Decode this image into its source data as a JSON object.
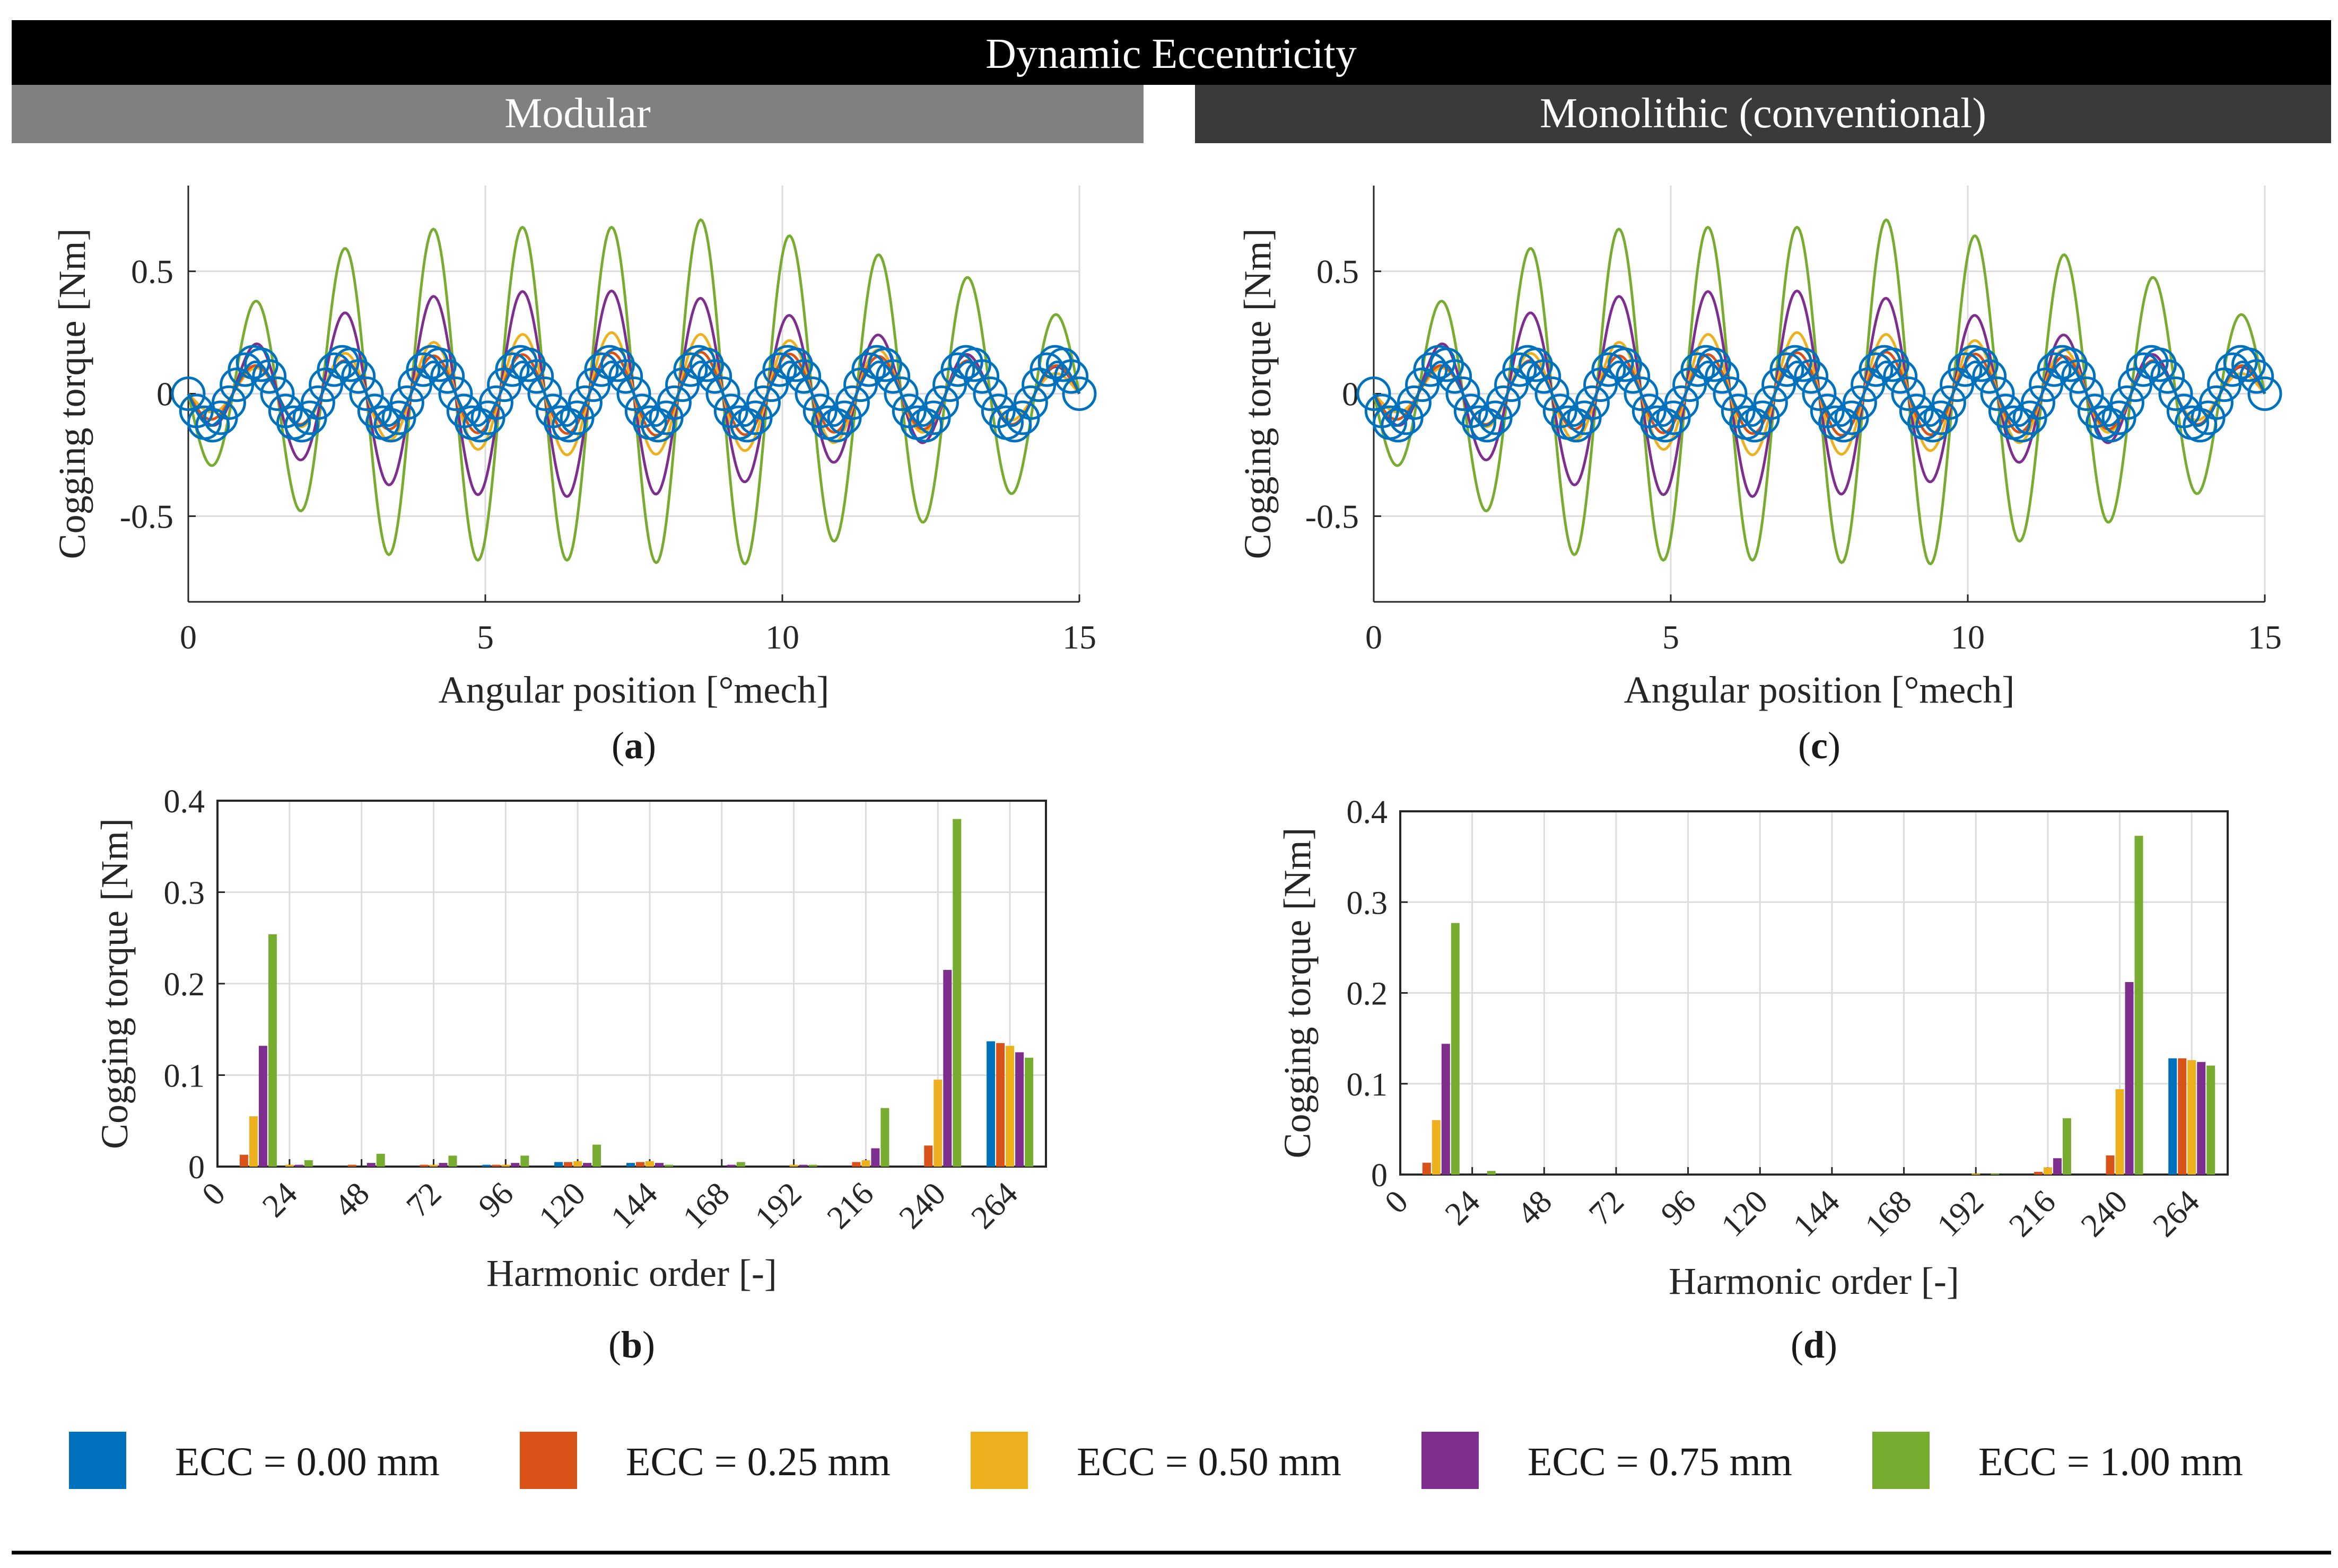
{
  "figure": {
    "header_title": "Dynamic Eccentricity",
    "left_header": "Modular",
    "right_header": "Monolithic (conventional)"
  },
  "colors": {
    "ecc000": "#0072BD",
    "ecc025": "#D95319",
    "ecc050": "#EDB120",
    "ecc075": "#7E2F8E",
    "ecc100": "#77AC30",
    "header_dark": "#000000",
    "header_left": "#808080",
    "header_right": "#3a3a3a"
  },
  "legend": [
    {
      "label": "ECC = 0.00 mm",
      "color_key": "ecc000"
    },
    {
      "label": "ECC = 0.25 mm",
      "color_key": "ecc025"
    },
    {
      "label": "ECC = 0.50 mm",
      "color_key": "ecc050"
    },
    {
      "label": "ECC = 0.75 mm",
      "color_key": "ecc075"
    },
    {
      "label": "ECC = 1.00 mm",
      "color_key": "ecc100"
    }
  ],
  "chart_data": [
    {
      "id": "a",
      "panel_label": "a",
      "type": "line",
      "xlabel": "Angular position [°mech]",
      "ylabel": "Cogging torque [Nm]",
      "xlim": [
        0,
        15
      ],
      "ylim": [
        -0.85,
        0.85
      ],
      "xticks": [
        0,
        5,
        10,
        15
      ],
      "yticks": [
        -0.5,
        0,
        0.5
      ],
      "ytick_labels": [
        "-0.5",
        "0",
        "0.5"
      ],
      "grid": true,
      "period_deg": 1.5,
      "series": [
        {
          "name": "ECC = 0.00 mm",
          "marker": "circle",
          "fundamental_amplitude_nm": 0.13,
          "envelope": [
            0.13,
            0.13,
            0.13,
            0.13,
            0.13,
            0.13,
            0.13,
            0.13,
            0.13,
            0.13,
            0.13
          ]
        },
        {
          "name": "ECC = 0.25 mm",
          "fundamental_amplitude_nm": 0.15,
          "envelope": [
            0.1,
            0.12,
            0.14,
            0.16,
            0.16,
            0.17,
            0.17,
            0.16,
            0.15,
            0.13,
            0.11
          ]
        },
        {
          "name": "ECC = 0.50 mm",
          "fundamental_amplitude_nm": 0.22,
          "envelope": [
            0.06,
            0.12,
            0.18,
            0.22,
            0.25,
            0.25,
            0.24,
            0.21,
            0.17,
            0.12,
            0.07
          ]
        },
        {
          "name": "ECC = 0.75 mm",
          "fundamental_amplitude_nm": 0.4,
          "envelope": [
            0.09,
            0.24,
            0.36,
            0.41,
            0.42,
            0.42,
            0.38,
            0.3,
            0.22,
            0.14,
            0.1
          ]
        },
        {
          "name": "ECC = 1.00 mm",
          "fundamental_amplitude_nm": 0.7,
          "envelope": [
            0.25,
            0.42,
            0.65,
            0.68,
            0.68,
            0.68,
            0.72,
            0.62,
            0.55,
            0.45,
            0.28
          ]
        }
      ]
    },
    {
      "id": "b",
      "panel_label": "b",
      "type": "bar",
      "xlabel": "Harmonic order [-]",
      "ylabel": "Cogging torque [Nm]",
      "ylim": [
        0,
        0.4
      ],
      "yticks": [
        0,
        0.1,
        0.2,
        0.3,
        0.4
      ],
      "categories": [
        "0",
        "24",
        "48",
        "72",
        "96",
        "120",
        "144",
        "168",
        "192",
        "216",
        "240",
        "264"
      ],
      "bar_positions": [
        12,
        24,
        48,
        72,
        96,
        120,
        144,
        168,
        192,
        216,
        240,
        264
      ],
      "tick_positions": [
        0,
        24,
        48,
        72,
        96,
        120,
        144,
        168,
        192,
        216,
        240,
        264
      ],
      "x_range": [
        0,
        276
      ],
      "grid": true,
      "series": [
        {
          "name": "ECC = 0.00 mm",
          "values": [
            0,
            0,
            0,
            0,
            0.002,
            0.005,
            0.004,
            0,
            0,
            0,
            0,
            0.137
          ]
        },
        {
          "name": "ECC = 0.25 mm",
          "values": [
            0.013,
            0,
            0.002,
            0.002,
            0.002,
            0.005,
            0.005,
            0,
            0,
            0.005,
            0.023,
            0.135
          ]
        },
        {
          "name": "ECC = 0.50 mm",
          "values": [
            0.055,
            0.002,
            0,
            0.002,
            0.002,
            0.006,
            0.006,
            0,
            0.002,
            0.007,
            0.095,
            0.132
          ]
        },
        {
          "name": "ECC = 0.75 mm",
          "values": [
            0.132,
            0.002,
            0.004,
            0.004,
            0.004,
            0.004,
            0.004,
            0.002,
            0.002,
            0.02,
            0.215,
            0.125
          ]
        },
        {
          "name": "ECC = 1.00 mm",
          "values": [
            0.254,
            0.007,
            0.014,
            0.012,
            0.012,
            0.024,
            0.002,
            0.005,
            0.002,
            0.064,
            0.38,
            0.119
          ]
        }
      ]
    },
    {
      "id": "c",
      "panel_label": "c",
      "type": "line",
      "xlabel": "Angular position [°mech]",
      "ylabel": "Cogging torque [Nm]",
      "xlim": [
        0,
        15
      ],
      "ylim": [
        -0.85,
        0.85
      ],
      "xticks": [
        0,
        5,
        10,
        15
      ],
      "yticks": [
        -0.5,
        0,
        0.5
      ],
      "ytick_labels": [
        "-0.5",
        "0",
        "0.5"
      ],
      "grid": true,
      "period_deg": 1.5,
      "series": [
        {
          "name": "ECC = 0.00 mm",
          "marker": "circle",
          "fundamental_amplitude_nm": 0.13,
          "envelope": [
            0.13,
            0.13,
            0.13,
            0.13,
            0.13,
            0.13,
            0.13,
            0.13,
            0.13,
            0.13,
            0.13
          ]
        },
        {
          "name": "ECC = 0.25 mm",
          "fundamental_amplitude_nm": 0.15,
          "envelope": [
            0.1,
            0.12,
            0.14,
            0.16,
            0.16,
            0.17,
            0.17,
            0.16,
            0.15,
            0.13,
            0.11
          ]
        },
        {
          "name": "ECC = 0.50 mm",
          "fundamental_amplitude_nm": 0.22,
          "envelope": [
            0.06,
            0.12,
            0.18,
            0.22,
            0.25,
            0.25,
            0.24,
            0.21,
            0.17,
            0.12,
            0.07
          ]
        },
        {
          "name": "ECC = 0.75 mm",
          "fundamental_amplitude_nm": 0.4,
          "envelope": [
            0.09,
            0.24,
            0.36,
            0.41,
            0.42,
            0.42,
            0.38,
            0.3,
            0.22,
            0.14,
            0.1
          ]
        },
        {
          "name": "ECC = 1.00 mm",
          "fundamental_amplitude_nm": 0.7,
          "envelope": [
            0.25,
            0.42,
            0.65,
            0.68,
            0.68,
            0.68,
            0.72,
            0.62,
            0.55,
            0.45,
            0.28
          ]
        }
      ]
    },
    {
      "id": "d",
      "panel_label": "d",
      "type": "bar",
      "xlabel": "Harmonic order [-]",
      "ylabel": "Cogging torque [Nm]",
      "ylim": [
        0,
        0.4
      ],
      "yticks": [
        0,
        0.1,
        0.2,
        0.3,
        0.4
      ],
      "categories": [
        "0",
        "24",
        "48",
        "72",
        "96",
        "120",
        "144",
        "168",
        "192",
        "216",
        "240",
        "264"
      ],
      "bar_positions": [
        12,
        24,
        48,
        72,
        96,
        120,
        144,
        168,
        192,
        216,
        240,
        264
      ],
      "tick_positions": [
        0,
        24,
        48,
        72,
        96,
        120,
        144,
        168,
        192,
        216,
        240,
        264
      ],
      "x_range": [
        0,
        276
      ],
      "grid": true,
      "series": [
        {
          "name": "ECC = 0.00 mm",
          "values": [
            0,
            0,
            0,
            0,
            0,
            0,
            0,
            0,
            0,
            0,
            0,
            0.128
          ]
        },
        {
          "name": "ECC = 0.25 mm",
          "values": [
            0.013,
            0,
            0,
            0,
            0,
            0,
            0,
            0,
            0,
            0.003,
            0.021,
            0.128
          ]
        },
        {
          "name": "ECC = 0.50 mm",
          "values": [
            0.06,
            0,
            0,
            0,
            0,
            0,
            0,
            0,
            0.001,
            0.008,
            0.094,
            0.126
          ]
        },
        {
          "name": "ECC = 0.75 mm",
          "values": [
            0.144,
            0,
            0,
            0,
            0,
            0,
            0,
            0,
            0,
            0.018,
            0.212,
            0.124
          ]
        },
        {
          "name": "ECC = 1.00 mm",
          "values": [
            0.277,
            0.004,
            0,
            0,
            0,
            0,
            0,
            0,
            0.001,
            0.062,
            0.373,
            0.12
          ]
        }
      ]
    }
  ]
}
